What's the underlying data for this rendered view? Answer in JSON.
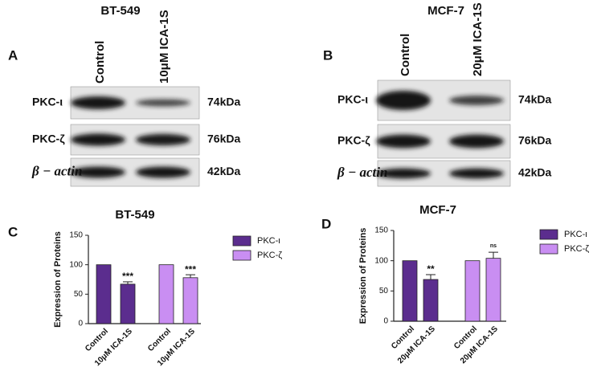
{
  "panels": [
    {
      "letter": "A",
      "title": "BT-549",
      "lanes": [
        "Control",
        "10μM ICA-1S"
      ],
      "rows": [
        {
          "label": "PKC-ι",
          "size": "74kDa"
        },
        {
          "label": "PKC-ζ",
          "size": "76kDa"
        },
        {
          "label": "β − actin",
          "size": "42kDa"
        }
      ]
    },
    {
      "letter": "B",
      "title": "MCF-7",
      "lanes": [
        "Control",
        "20μM ICA-1S"
      ],
      "rows": [
        {
          "label": "PKC-ι",
          "size": "74kDa"
        },
        {
          "label": "PKC-ζ",
          "size": "76kDa"
        },
        {
          "label": "β − actin",
          "size": "42kDa"
        }
      ]
    }
  ],
  "chart_data": [
    {
      "letter": "C",
      "type": "bar",
      "title": "BT-549",
      "y_label": "Expression of Proteins",
      "categories": [
        "Control",
        "10μM ICA-1S"
      ],
      "series": [
        {
          "name": "PKC-ι",
          "color": "#5b2d8e",
          "values": [
            100,
            67
          ],
          "errors": [
            null,
            4
          ],
          "annotations": [
            null,
            "***"
          ]
        },
        {
          "name": "PKC-ζ",
          "color": "#c98ef2",
          "values": [
            100,
            78
          ],
          "errors": [
            null,
            5
          ],
          "annotations": [
            null,
            "***"
          ]
        }
      ],
      "ylim": [
        0,
        150
      ],
      "yticks": [
        0,
        50,
        100,
        150
      ],
      "legend": "right"
    },
    {
      "letter": "D",
      "type": "bar",
      "title": "MCF-7",
      "y_label": "Expression of Proteins",
      "categories": [
        "Control",
        "20μM ICA-1S"
      ],
      "series": [
        {
          "name": "PKC-ι",
          "color": "#5b2d8e",
          "values": [
            100,
            69
          ],
          "errors": [
            null,
            8
          ],
          "annotations": [
            null,
            "**"
          ]
        },
        {
          "name": "PKC-ζ",
          "color": "#c98ef2",
          "values": [
            100,
            104
          ],
          "errors": [
            null,
            10
          ],
          "annotations": [
            null,
            "ns"
          ]
        }
      ],
      "ylim": [
        0,
        150
      ],
      "yticks": [
        0,
        50,
        100,
        150
      ],
      "legend": "right"
    }
  ]
}
